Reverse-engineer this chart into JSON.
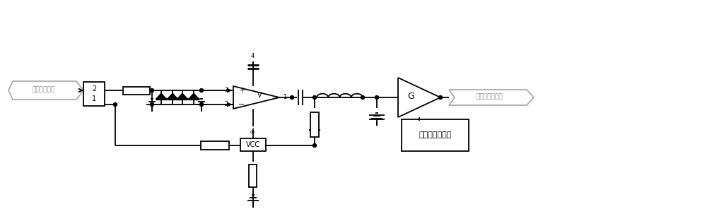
{
  "bg_color": "#ffffff",
  "line_color": "#000000",
  "figsize": [
    10.0,
    2.96
  ],
  "dpi": 100,
  "input_label": "探头接收信号",
  "output_label": "输出到采集芒片",
  "vcc_label": "VCC",
  "amp_label": "V",
  "gain_label": "G",
  "gain_box_label": "可控增益放大器",
  "pin_2": "2",
  "pin_1_box": "1",
  "pin_3": "3",
  "pin_2_neg": "2",
  "pin_4": "4",
  "pin_1_out": "1",
  "pin_8": "∞"
}
